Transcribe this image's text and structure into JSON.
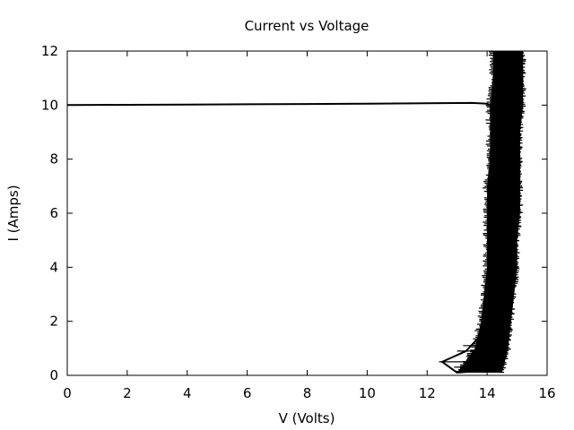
{
  "chart_data": {
    "type": "line",
    "title": "Current vs Voltage",
    "xlabel": "V (Volts)",
    "ylabel": "I (Amps)",
    "xlim": [
      0,
      16
    ],
    "ylim": [
      0,
      12
    ],
    "xticks": [
      "0",
      "2",
      "4",
      "6",
      "8",
      "10",
      "12",
      "14",
      "16"
    ],
    "yticks": [
      "0",
      "2",
      "4",
      "6",
      "8",
      "10",
      "12"
    ],
    "grid": false,
    "legend": "none",
    "line_color": "#000000",
    "series": [
      {
        "values_xy": [
          [
            0.0,
            10.0
          ],
          [
            2.0,
            10.01
          ],
          [
            4.0,
            10.02
          ],
          [
            6.0,
            10.03
          ],
          [
            8.0,
            10.04
          ],
          [
            10.0,
            10.05
          ],
          [
            12.0,
            10.07
          ],
          [
            13.5,
            10.08
          ],
          [
            14.0,
            10.05
          ],
          [
            14.1,
            10.0
          ],
          [
            14.2,
            9.0
          ],
          [
            14.1,
            8.0
          ],
          [
            14.3,
            7.0
          ],
          [
            14.2,
            6.0
          ],
          [
            14.4,
            5.0
          ],
          [
            14.3,
            4.0
          ],
          [
            14.4,
            3.0
          ],
          [
            14.2,
            2.0
          ],
          [
            14.3,
            1.0
          ],
          [
            14.2,
            0.5
          ],
          [
            14.1,
            0.2
          ],
          [
            13.0,
            0.1
          ],
          [
            12.5,
            0.5
          ],
          [
            13.3,
            0.9
          ],
          [
            13.8,
            1.5
          ],
          [
            14.0,
            2.5
          ],
          [
            14.1,
            3.5
          ],
          [
            14.2,
            4.5
          ],
          [
            14.2,
            5.5
          ],
          [
            14.3,
            6.5
          ],
          [
            14.2,
            7.5
          ],
          [
            14.3,
            8.5
          ],
          [
            14.4,
            9.5
          ],
          [
            14.5,
            10.5
          ],
          [
            14.4,
            11.5
          ],
          [
            14.3,
            12.0
          ]
        ]
      }
    ],
    "band": {
      "left_edge": [
        [
          13.0,
          0.1
        ],
        [
          13.6,
          1.0
        ],
        [
          13.8,
          2.0
        ],
        [
          13.9,
          3.0
        ],
        [
          14.0,
          4.0
        ],
        [
          14.0,
          5.0
        ],
        [
          14.0,
          6.0
        ],
        [
          14.0,
          7.0
        ],
        [
          14.1,
          8.0
        ],
        [
          14.1,
          9.0
        ],
        [
          14.1,
          10.0
        ],
        [
          14.2,
          11.0
        ],
        [
          14.2,
          12.0
        ]
      ],
      "right_edge": [
        [
          14.5,
          0.1
        ],
        [
          14.7,
          1.0
        ],
        [
          14.8,
          2.0
        ],
        [
          14.9,
          3.0
        ],
        [
          15.0,
          4.0
        ],
        [
          15.0,
          5.0
        ],
        [
          15.1,
          6.0
        ],
        [
          15.1,
          7.0
        ],
        [
          15.1,
          8.0
        ],
        [
          15.1,
          9.0
        ],
        [
          15.2,
          10.0
        ],
        [
          15.2,
          11.0
        ],
        [
          15.2,
          12.0
        ]
      ]
    }
  }
}
